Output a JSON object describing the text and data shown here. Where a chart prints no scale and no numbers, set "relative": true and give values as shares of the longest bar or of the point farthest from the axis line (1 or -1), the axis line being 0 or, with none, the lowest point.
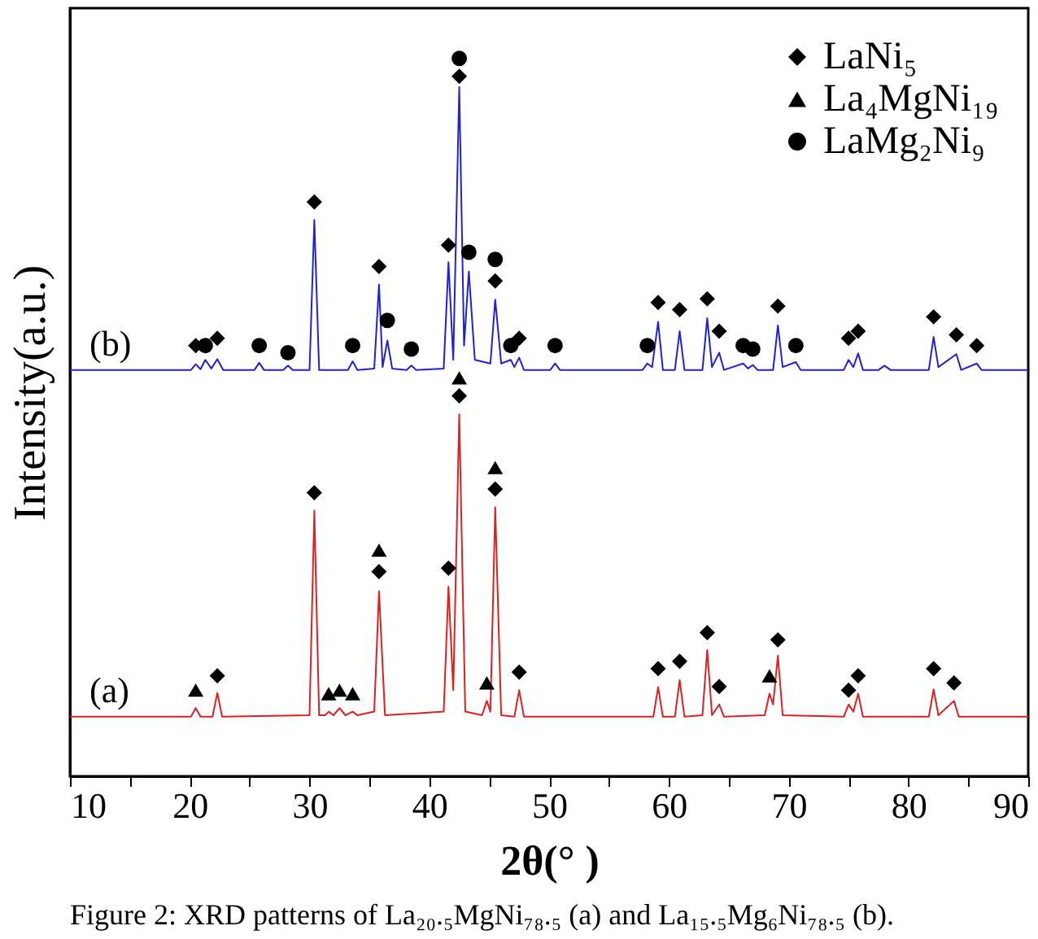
{
  "chart_data": {
    "type": "line",
    "relative": true,
    "xlabel": "2θ(° )",
    "ylabel": "Intensity(a.u.)",
    "xlim": [
      10,
      90
    ],
    "xticks": [
      10,
      {
        "value": 15,
        "label": null
      },
      20,
      {
        "value": 25,
        "label": null
      },
      30,
      {
        "value": 35,
        "label": null
      },
      40,
      {
        "value": 45,
        "label": null
      },
      50,
      {
        "value": 55,
        "label": null
      },
      60,
      {
        "value": 65,
        "label": null
      },
      70,
      {
        "value": 75,
        "label": null
      },
      80,
      {
        "value": 85,
        "label": null
      },
      90
    ],
    "grid": false,
    "legend": "top right",
    "annotations": [
      "Figure 2: XRD patterns of La₂₀.₅MgNi₇₈.₅ (a) and La₁₅.₅Mg₆Ni₇₈.₅ (b)."
    ],
    "series": [
      {
        "type": "line",
        "name": "(a)",
        "color": "#e02020",
        "marker": "none",
        "x": [
          10,
          20.1,
          20.5,
          20.9,
          21.9,
          22.3,
          22.7,
          30.0,
          30.4,
          30.8,
          31.3,
          31.6,
          32.0,
          32.5,
          33.0,
          33.6,
          34.0,
          35.4,
          35.8,
          36.3,
          41.2,
          41.6,
          42.0,
          42.5,
          43.0,
          44.4,
          44.8,
          45.1,
          45.5,
          46.0,
          47.1,
          47.5,
          47.9,
          58.7,
          59.1,
          59.5,
          60.5,
          60.9,
          61.3,
          62.8,
          63.2,
          63.6,
          64.2,
          64.6,
          68.0,
          68.4,
          68.7,
          69.1,
          69.5,
          74.6,
          75.0,
          75.4,
          75.8,
          76.2,
          81.7,
          82.1,
          82.5,
          83.8,
          84.2,
          90
        ],
        "values": [
          0.083,
          0.083,
          0.095,
          0.083,
          0.083,
          0.116,
          0.083,
          0.085,
          0.37,
          0.085,
          0.085,
          0.09,
          0.085,
          0.095,
          0.085,
          0.09,
          0.085,
          0.09,
          0.258,
          0.085,
          0.09,
          0.264,
          0.12,
          0.504,
          0.09,
          0.085,
          0.105,
          0.09,
          0.375,
          0.085,
          0.083,
          0.12,
          0.083,
          0.083,
          0.124,
          0.083,
          0.083,
          0.134,
          0.083,
          0.085,
          0.176,
          0.085,
          0.1,
          0.083,
          0.085,
          0.115,
          0.1,
          0.168,
          0.085,
          0.083,
          0.1,
          0.09,
          0.115,
          0.083,
          0.083,
          0.121,
          0.085,
          0.105,
          0.083,
          0.083
        ]
      },
      {
        "type": "line",
        "name": "(b)",
        "color": "#2020e0",
        "marker": "none",
        "x": [
          10,
          20.1,
          20.5,
          20.9,
          21.3,
          21.8,
          22.3,
          22.8,
          25.4,
          25.8,
          26.2,
          27.8,
          28.2,
          28.6,
          30.0,
          30.4,
          30.8,
          33.2,
          33.6,
          34.0,
          35.4,
          35.8,
          36.1,
          36.5,
          36.9,
          38.1,
          38.5,
          38.9,
          41.2,
          41.6,
          42.0,
          42.5,
          42.9,
          43.3,
          43.8,
          45.1,
          45.5,
          46.0,
          46.8,
          47.1,
          47.5,
          47.9,
          50.1,
          50.5,
          50.9,
          57.8,
          58.2,
          58.6,
          59.1,
          59.5,
          60.5,
          60.9,
          61.3,
          62.8,
          63.2,
          63.6,
          64.2,
          64.6,
          66.2,
          66.6,
          67.0,
          67.4,
          68.7,
          69.1,
          69.5,
          70.6,
          71.0,
          74.6,
          75.0,
          75.4,
          75.8,
          76.2,
          77.5,
          78.0,
          78.5,
          81.7,
          82.1,
          82.5,
          84.0,
          84.4,
          85.7,
          86.1,
          90
        ],
        "values": [
          0.566,
          0.566,
          0.574,
          0.567,
          0.58,
          0.568,
          0.581,
          0.566,
          0.566,
          0.576,
          0.566,
          0.566,
          0.572,
          0.566,
          0.566,
          0.775,
          0.566,
          0.566,
          0.578,
          0.566,
          0.568,
          0.685,
          0.57,
          0.607,
          0.568,
          0.566,
          0.572,
          0.566,
          0.568,
          0.716,
          0.58,
          0.96,
          0.6,
          0.703,
          0.58,
          0.575,
          0.664,
          0.575,
          0.58,
          0.57,
          0.583,
          0.566,
          0.566,
          0.575,
          0.566,
          0.566,
          0.575,
          0.57,
          0.633,
          0.566,
          0.566,
          0.62,
          0.566,
          0.566,
          0.638,
          0.57,
          0.59,
          0.566,
          0.575,
          0.568,
          0.573,
          0.566,
          0.566,
          0.628,
          0.57,
          0.577,
          0.566,
          0.566,
          0.58,
          0.57,
          0.589,
          0.566,
          0.566,
          0.572,
          0.566,
          0.566,
          0.612,
          0.57,
          0.588,
          0.566,
          0.575,
          0.566,
          0.566
        ]
      },
      {
        "type": "scatter",
        "name": "LaNi₅",
        "color": "#000000",
        "marker": "diamond",
        "x": [
          20.5,
          22.3,
          30.4,
          35.8,
          41.6,
          42.5,
          45.5,
          47.5,
          59.1,
          60.9,
          63.2,
          64.2,
          69.1,
          75.0,
          75.8,
          82.1,
          84.0,
          85.7,
          22.3,
          30.4,
          35.8,
          41.6,
          42.5,
          45.5,
          47.5,
          59.1,
          60.9,
          63.2,
          64.2,
          69.1,
          75.0,
          75.8,
          82.1,
          83.8
        ],
        "values": [
          0.6,
          0.61,
          0.8,
          0.71,
          0.74,
          0.975,
          0.69,
          0.61,
          0.66,
          0.65,
          0.665,
          0.62,
          0.655,
          0.61,
          0.62,
          0.64,
          0.615,
          0.6,
          0.14,
          0.395,
          0.285,
          0.29,
          0.53,
          0.4,
          0.145,
          0.15,
          0.16,
          0.2,
          0.125,
          0.19,
          0.12,
          0.14,
          0.15,
          0.13
        ]
      },
      {
        "type": "scatter",
        "name": "La₄MgNi₁₉",
        "color": "#000000",
        "marker": "triangle",
        "x": [
          20.5,
          31.6,
          32.5,
          33.6,
          35.8,
          42.5,
          44.8,
          45.5,
          68.4
        ],
        "values": [
          0.12,
          0.115,
          0.12,
          0.115,
          0.315,
          0.555,
          0.13,
          0.43,
          0.14
        ]
      },
      {
        "type": "scatter",
        "name": "LaMg₂Ni₉",
        "color": "#000000",
        "marker": "circle",
        "x": [
          21.3,
          25.8,
          28.2,
          33.6,
          36.5,
          38.5,
          42.5,
          43.3,
          45.5,
          46.8,
          50.5,
          58.2,
          66.2,
          67.0,
          70.6
        ],
        "values": [
          0.6,
          0.6,
          0.59,
          0.6,
          0.635,
          0.595,
          1.0,
          0.73,
          0.72,
          0.6,
          0.6,
          0.6,
          0.6,
          0.595,
          0.6
        ]
      }
    ]
  }
}
